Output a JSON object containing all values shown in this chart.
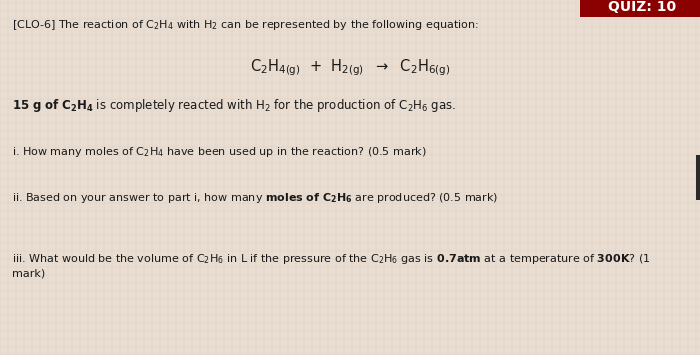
{
  "bg_color": "#e8ddd0",
  "header_bg": "#8B0000",
  "header_text": "QUIZ: 10",
  "header_text_color": "#ffffff",
  "header_fontsize": 10,
  "intro_text": "[CLO-6] The reaction of C₂H₄ with H₂ can be represented by the following equation:",
  "given_text_bold": "15 g of C₂H₄",
  "given_text_rest": " is completely reacted with H₂ for the production of C₂H₆ gas.",
  "q1": "i. How many moles of C₂H₄ have been used up in the reaction? (0.5 mark)",
  "q2_pre": "ii. Based on your answer to part i, how many ",
  "q2_bold": "moles of C₂H₆",
  "q2_post": " are produced? (0.5 mark)",
  "q3_pre": "iii. What would be the volume of C₂H₆ in L if the pressure of the C₂H₆ gas is ",
  "q3_bold1": "0.7atm",
  "q3_mid": " at a temperature of ",
  "q3_bold2": "300K",
  "q3_post": "? (1",
  "q3_wrap": "mark)",
  "font_size_intro": 8.0,
  "font_size_eq": 10.5,
  "font_size_given": 8.5,
  "font_size_q": 8.0,
  "text_color": "#1a1a1a"
}
